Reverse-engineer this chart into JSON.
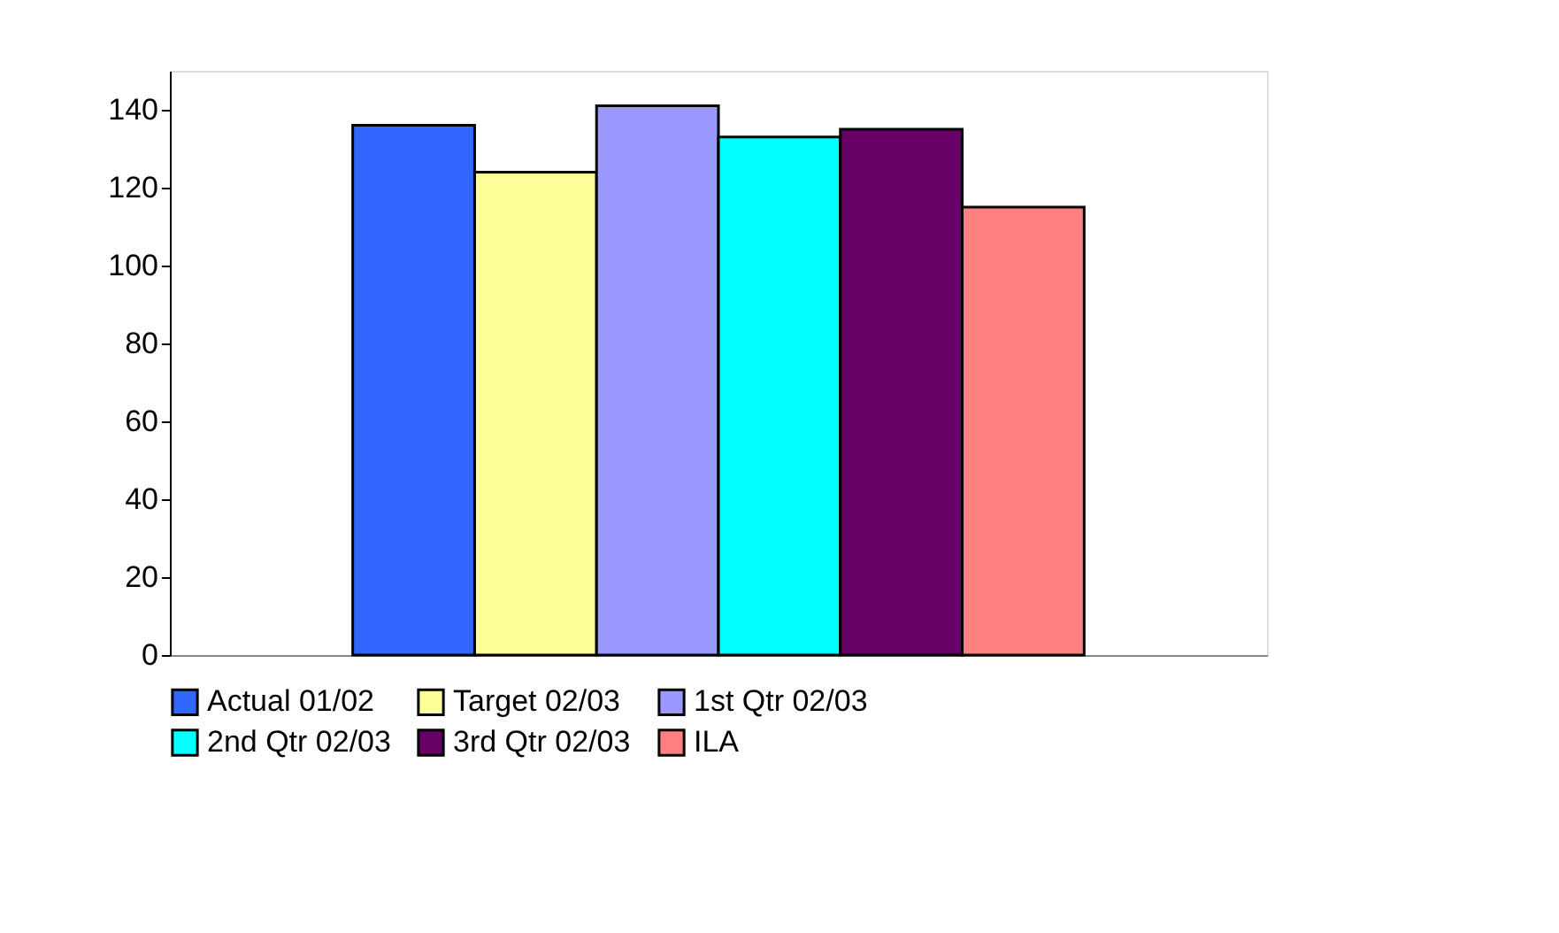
{
  "chart_data": {
    "type": "bar",
    "categories": [
      null
    ],
    "series": [
      {
        "name": "Actual 01/02",
        "color": "#3366ff",
        "values": [
          136
        ]
      },
      {
        "name": "Target 02/03",
        "color": "#ffff99",
        "values": [
          124
        ]
      },
      {
        "name": "1st Qtr 02/03",
        "color": "#9999ff",
        "values": [
          141
        ]
      },
      {
        "name": "2nd Qtr 02/03",
        "color": "#00ffff",
        "values": [
          133
        ]
      },
      {
        "name": "3rd Qtr 02/03",
        "color": "#660066",
        "values": [
          135
        ]
      },
      {
        "name": "ILA",
        "color": "#ff8080",
        "values": [
          115
        ]
      }
    ],
    "ylim": [
      0,
      150
    ],
    "yticks": [
      0,
      20,
      40,
      60,
      80,
      100,
      120,
      140
    ],
    "grid": false,
    "legend": "bottom"
  }
}
